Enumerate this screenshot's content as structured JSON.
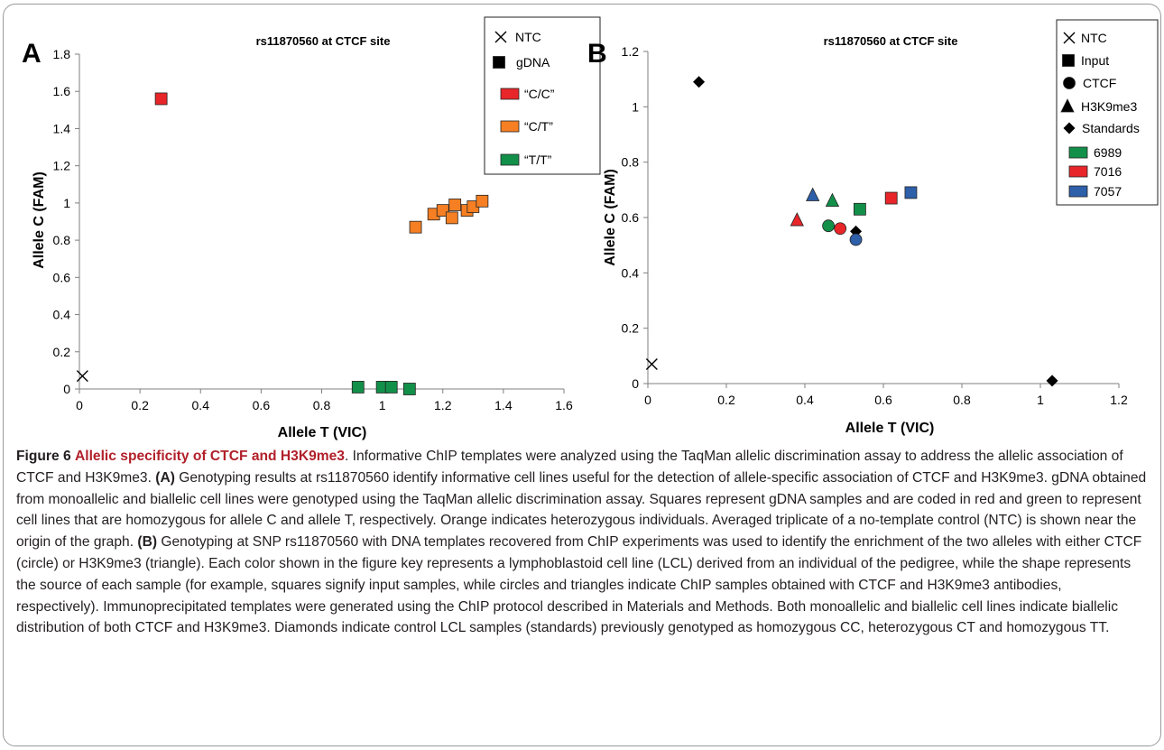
{
  "colors": {
    "red": "#e8262a",
    "orange": "#f57f22",
    "green": "#12904a",
    "blue": "#2e5fa9",
    "black": "#000000",
    "caption_accent": "#b1202a"
  },
  "chart_data": [
    {
      "type": "scatter",
      "panel_label": "A",
      "title": "rs11870560 at CTCF site",
      "xlabel": "Allele T (VIC)",
      "ylabel": "Allele C (FAM)",
      "xlim": [
        0,
        1.6
      ],
      "ylim": [
        0,
        1.8
      ],
      "xticks": [
        "0",
        "0.2",
        "0.4",
        "0.6",
        "0.8",
        "1",
        "1.2",
        "1.4",
        "1.6"
      ],
      "yticks": [
        "0",
        "0.2",
        "0.4",
        "0.6",
        "0.8",
        "1",
        "1.2",
        "1.4",
        "1.6",
        "1.8"
      ],
      "grid": false,
      "legend_position": "top-right",
      "legend": [
        {
          "label": "NTC",
          "marker": "x",
          "color": "black"
        },
        {
          "label": "gDNA",
          "marker": "square",
          "color": "black"
        },
        {
          "label": "“C/C”",
          "marker": "square",
          "color": "red"
        },
        {
          "label": "“C/T”",
          "marker": "square",
          "color": "orange"
        },
        {
          "label": "“T/T”",
          "marker": "square",
          "color": "green"
        }
      ],
      "series": [
        {
          "name": "NTC",
          "marker": "x",
          "color": "black",
          "points": [
            [
              0.01,
              0.07
            ]
          ]
        },
        {
          "name": "“C/C”",
          "marker": "square",
          "color": "red",
          "points": [
            [
              0.27,
              1.56
            ]
          ]
        },
        {
          "name": "“C/T”",
          "marker": "square",
          "color": "orange",
          "points": [
            [
              1.11,
              0.87
            ],
            [
              1.17,
              0.94
            ],
            [
              1.2,
              0.96
            ],
            [
              1.23,
              0.92
            ],
            [
              1.24,
              0.99
            ],
            [
              1.28,
              0.96
            ],
            [
              1.3,
              0.98
            ],
            [
              1.33,
              1.01
            ]
          ]
        },
        {
          "name": "“T/T”",
          "marker": "square",
          "color": "green",
          "points": [
            [
              0.92,
              0.01
            ],
            [
              1.0,
              0.01
            ],
            [
              1.03,
              0.01
            ],
            [
              1.09,
              0.0
            ]
          ]
        }
      ]
    },
    {
      "type": "scatter",
      "panel_label": "B",
      "title": "rs11870560 at CTCF site",
      "xlabel": "Allele T (VIC)",
      "ylabel": "Allele C (FAM)",
      "xlim": [
        0,
        1.2
      ],
      "ylim": [
        0,
        1.2
      ],
      "xticks": [
        "0",
        "0.2",
        "0.4",
        "0.6",
        "0.8",
        "1",
        "1.2"
      ],
      "yticks": [
        "0",
        "0.2",
        "0.4",
        "0.6",
        "0.8",
        "1",
        "1.2"
      ],
      "grid": false,
      "legend_position": "top-right",
      "legend": [
        {
          "label": "NTC",
          "marker": "x",
          "color": "black"
        },
        {
          "label": "Input",
          "marker": "square",
          "color": "black"
        },
        {
          "label": "CTCF",
          "marker": "circle",
          "color": "black"
        },
        {
          "label": "H3K9me3",
          "marker": "triangle",
          "color": "black"
        },
        {
          "label": "Standards",
          "marker": "diamond",
          "color": "black"
        },
        {
          "label": "6989",
          "marker": "square",
          "color": "green"
        },
        {
          "label": "7016",
          "marker": "square",
          "color": "red"
        },
        {
          "label": "7057",
          "marker": "square",
          "color": "blue"
        }
      ],
      "series": [
        {
          "name": "NTC",
          "marker": "x",
          "color": "black",
          "points": [
            [
              0.01,
              0.07
            ]
          ]
        },
        {
          "name": "Standards",
          "marker": "diamond",
          "color": "black",
          "points": [
            [
              0.13,
              1.09
            ],
            [
              0.53,
              0.55
            ],
            [
              1.03,
              0.01
            ]
          ]
        },
        {
          "name": "Input",
          "marker": "square",
          "points": [
            [
              0.54,
              0.63,
              "green"
            ],
            [
              0.62,
              0.67,
              "red"
            ],
            [
              0.67,
              0.69,
              "blue"
            ]
          ]
        },
        {
          "name": "CTCF",
          "marker": "circle",
          "points": [
            [
              0.46,
              0.57,
              "green"
            ],
            [
              0.49,
              0.56,
              "red"
            ],
            [
              0.53,
              0.52,
              "blue"
            ]
          ]
        },
        {
          "name": "H3K9me3",
          "marker": "triangle",
          "points": [
            [
              0.38,
              0.59,
              "red"
            ],
            [
              0.42,
              0.68,
              "blue"
            ],
            [
              0.47,
              0.66,
              "green"
            ]
          ]
        }
      ]
    }
  ],
  "caption": {
    "figure_label": "Figure 6",
    "title": "Allelic specificity of CTCF and H3K9me3",
    "intro": ". Informative ChIP templates were analyzed using the TaqMan allelic discrimination assay to address the allelic association of CTCF and H3K9me3. ",
    "label_a": "(A)",
    "text_a": " Genotyping results at rs11870560 identify informative cell lines useful for the detection of allele-specific association of CTCF and H3K9me3. gDNA obtained from monoallelic and biallelic cell lines were genotyped using the TaqMan allelic discrimination assay. Squares represent gDNA samples and are coded in red and green to represent cell lines that are homozygous for allele C and allele T, respectively. Orange indicates heterozygous individuals. Averaged triplicate of a no-template control (NTC) is shown near the origin of the graph. ",
    "label_b": "(B)",
    "text_b": " Genotyping at SNP rs11870560 with DNA templates recovered from ChIP experiments was used to identify the enrichment of the two alleles with either CTCF (circle) or H3K9me3 (triangle). Each color shown in the figure key represents a lymphoblastoid cell line (LCL) derived from an individual of the pedigree, while the shape represents the source of each sample (for example, squares signify input samples, while circles and triangles indicate ChIP samples obtained with CTCF and H3K9me3 antibodies, respectively). Immunoprecipitated templates were generated using the ChIP protocol described in Materials and Methods. Both monoallelic and biallelic cell lines indicate biallelic distribution of both CTCF and H3K9me3. Diamonds indicate control LCL samples (standards) previously genotyped as homozygous CC, heterozygous CT and homozygous TT."
  }
}
